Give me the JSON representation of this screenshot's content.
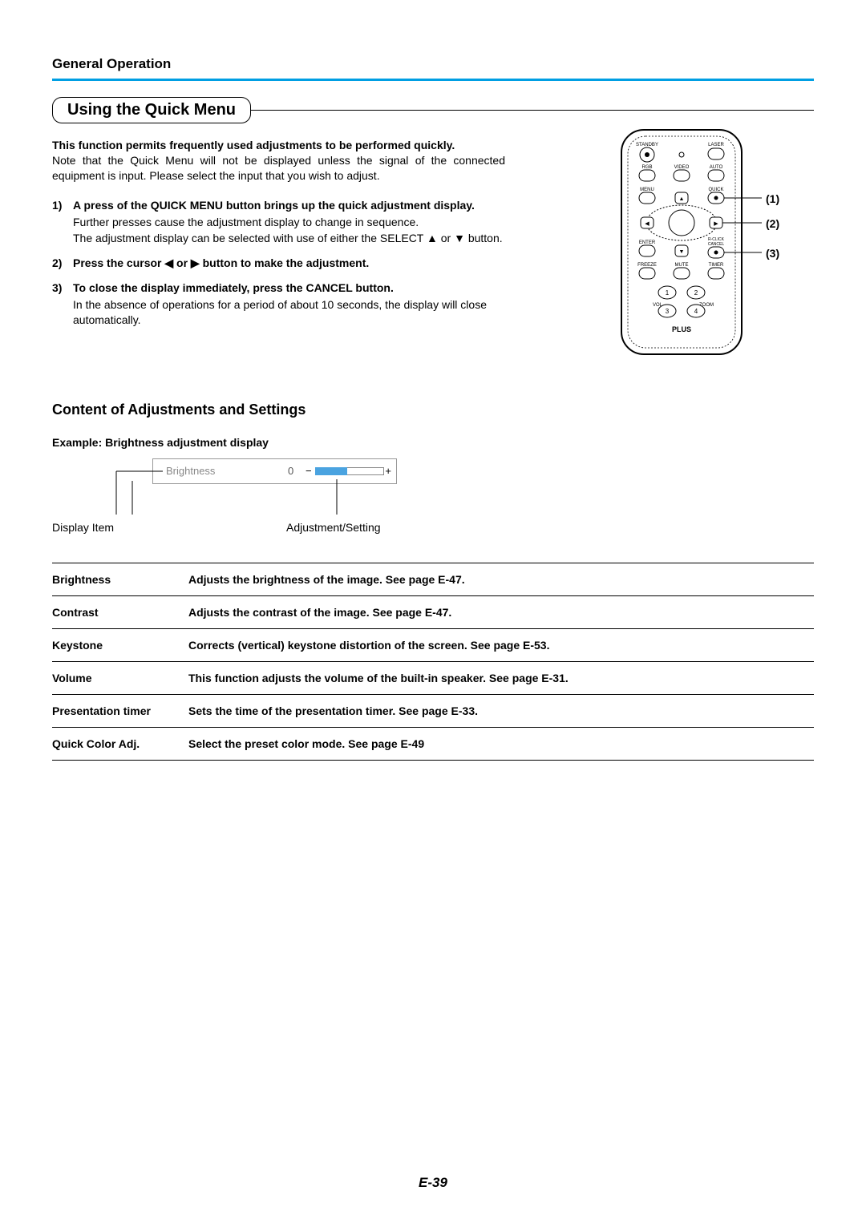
{
  "header": "General Operation",
  "title": "Using the Quick Menu",
  "intro_bold": "This function permits frequently used adjustments to be performed quickly.",
  "intro_note": "Note that the Quick Menu will not be displayed unless the signal of the connected equipment is input. Please select the input that you wish to adjust.",
  "steps": {
    "s1_num": "1)",
    "s1_bold": "A press of the QUICK MENU button brings up the quick adjustment display.",
    "s1_sub1": "Further presses cause the adjustment display to change in sequence.",
    "s1_sub2": "The adjustment display can be selected with use of either the SELECT ▲ or ▼ button.",
    "s2_num": "2)",
    "s2_bold": "Press the cursor ◀ or ▶ button to make the adjustment.",
    "s3_num": "3)",
    "s3_bold": "To close the display immediately, press the CANCEL button.",
    "s3_sub": "In the absence of operations for a period of about 10 seconds, the display will close automatically."
  },
  "callouts": {
    "c1": "(1)",
    "c2": "(2)",
    "c3": "(3)"
  },
  "subheading": "Content of Adjustments and Settings",
  "example_label": "Example: Brightness adjustment display",
  "osd": {
    "label": "Brightness",
    "value": "0",
    "minus": "−",
    "plus": "+",
    "fill_color": "#4aa3e0"
  },
  "diagram_captions": {
    "left": "Display Item",
    "right": "Adjustment/Setting"
  },
  "table": {
    "rows": [
      {
        "item": "Brightness",
        "desc": "Adjusts the brightness of the image. See page E-47."
      },
      {
        "item": "Contrast",
        "desc": "Adjusts the contrast of the image. See page E-47."
      },
      {
        "item": "Keystone",
        "desc": "Corrects (vertical) keystone distortion of the screen.  See page E-53."
      },
      {
        "item": "Volume",
        "desc": "This function adjusts the volume of the built-in speaker. See page E-31."
      },
      {
        "item": "Presentation timer",
        "desc": "Sets the time of the presentation timer.  See page E-33."
      },
      {
        "item": "Quick Color Adj.",
        "desc": "Select the preset color mode. See page E-49"
      }
    ]
  },
  "remote_labels": {
    "standby": "STANDBY",
    "laser": "LASER",
    "rgb": "RGB",
    "video": "VIDEO",
    "auto": "AUTO",
    "menu": "MENU",
    "quick": "QUICK",
    "enter": "ENTER",
    "rclick": "R-CLICK",
    "cancel": "CANCEL",
    "freeze": "FREEZE",
    "mute": "MUTE",
    "timer": "TIMER",
    "n1": "1",
    "n2": "2",
    "n3": "3",
    "n4": "4",
    "vol": "VOL",
    "zoom": "ZOOM",
    "plus": "PLUS"
  },
  "page_number": "E-39"
}
